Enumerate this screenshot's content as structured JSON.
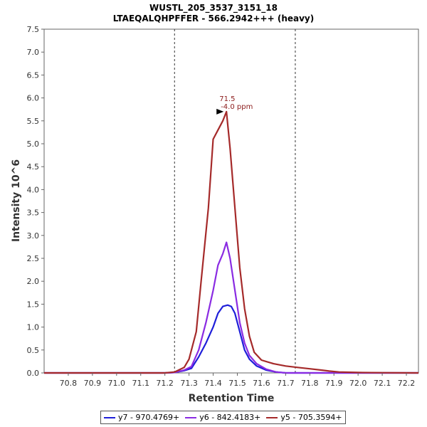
{
  "chart_data": {
    "type": "line",
    "title": "WUSTL_205_3537_3151_18",
    "subtitle": "LTAEQALQHPFFER - 566.2942+++ (heavy)",
    "xlabel": "Retention Time",
    "ylabel": "Intensity 10^6",
    "xlim": [
      70.7,
      72.25
    ],
    "ylim": [
      0,
      7.5
    ],
    "x_ticks": [
      "70.8",
      "70.9",
      "71.0",
      "71.1",
      "71.2",
      "71.3",
      "71.4",
      "71.5",
      "71.6",
      "71.7",
      "71.8",
      "71.9",
      "72.0",
      "72.1",
      "72.2"
    ],
    "y_ticks": [
      "0.0",
      "0.5",
      "1.0",
      "1.5",
      "2.0",
      "2.5",
      "3.0",
      "3.5",
      "4.0",
      "4.5",
      "5.0",
      "5.5",
      "6.0",
      "6.5",
      "7.0",
      "7.5"
    ],
    "integration_bounds": [
      71.24,
      71.74
    ],
    "grid": false,
    "legend_position": "bottom",
    "annotation": {
      "x": 71.455,
      "y": 5.7,
      "line1": "71.5",
      "line2": "-4.0 ppm"
    },
    "series": [
      {
        "name": "y7 - 970.4769+",
        "color": "#1f1fd9",
        "points": [
          [
            70.7,
            0.0
          ],
          [
            71.2,
            0.0
          ],
          [
            71.24,
            0.01
          ],
          [
            71.28,
            0.05
          ],
          [
            71.31,
            0.1
          ],
          [
            71.34,
            0.35
          ],
          [
            71.37,
            0.65
          ],
          [
            71.4,
            1.0
          ],
          [
            71.42,
            1.3
          ],
          [
            71.44,
            1.45
          ],
          [
            71.46,
            1.48
          ],
          [
            71.475,
            1.45
          ],
          [
            71.49,
            1.3
          ],
          [
            71.51,
            0.9
          ],
          [
            71.53,
            0.5
          ],
          [
            71.55,
            0.3
          ],
          [
            71.58,
            0.15
          ],
          [
            71.62,
            0.06
          ],
          [
            71.66,
            0.02
          ],
          [
            71.7,
            0.0
          ],
          [
            72.25,
            0.0
          ]
        ]
      },
      {
        "name": "y6 - 842.4183+",
        "color": "#8a2be2",
        "points": [
          [
            70.7,
            0.0
          ],
          [
            71.2,
            0.0
          ],
          [
            71.24,
            0.01
          ],
          [
            71.28,
            0.06
          ],
          [
            71.31,
            0.14
          ],
          [
            71.34,
            0.5
          ],
          [
            71.37,
            1.1
          ],
          [
            71.4,
            1.8
          ],
          [
            71.42,
            2.35
          ],
          [
            71.44,
            2.6
          ],
          [
            71.455,
            2.85
          ],
          [
            71.47,
            2.5
          ],
          [
            71.49,
            1.8
          ],
          [
            71.51,
            1.1
          ],
          [
            71.53,
            0.65
          ],
          [
            71.55,
            0.38
          ],
          [
            71.58,
            0.2
          ],
          [
            71.62,
            0.08
          ],
          [
            71.66,
            0.02
          ],
          [
            71.7,
            0.0
          ],
          [
            72.25,
            0.0
          ]
        ]
      },
      {
        "name": "y5 - 705.3594+",
        "color": "#a52a2a",
        "points": [
          [
            70.7,
            0.0
          ],
          [
            71.2,
            0.0
          ],
          [
            71.24,
            0.02
          ],
          [
            71.28,
            0.12
          ],
          [
            71.3,
            0.3
          ],
          [
            71.33,
            0.9
          ],
          [
            71.35,
            2.0
          ],
          [
            71.38,
            3.6
          ],
          [
            71.4,
            5.1
          ],
          [
            71.42,
            5.3
          ],
          [
            71.44,
            5.5
          ],
          [
            71.455,
            5.7
          ],
          [
            71.47,
            4.9
          ],
          [
            71.49,
            3.6
          ],
          [
            71.51,
            2.3
          ],
          [
            71.53,
            1.4
          ],
          [
            71.55,
            0.8
          ],
          [
            71.57,
            0.45
          ],
          [
            71.6,
            0.28
          ],
          [
            71.65,
            0.2
          ],
          [
            71.7,
            0.15
          ],
          [
            71.75,
            0.12
          ],
          [
            71.8,
            0.09
          ],
          [
            71.85,
            0.06
          ],
          [
            71.88,
            0.04
          ],
          [
            71.92,
            0.02
          ],
          [
            72.0,
            0.01
          ],
          [
            72.1,
            0.005
          ],
          [
            72.25,
            0.0
          ]
        ]
      }
    ]
  }
}
